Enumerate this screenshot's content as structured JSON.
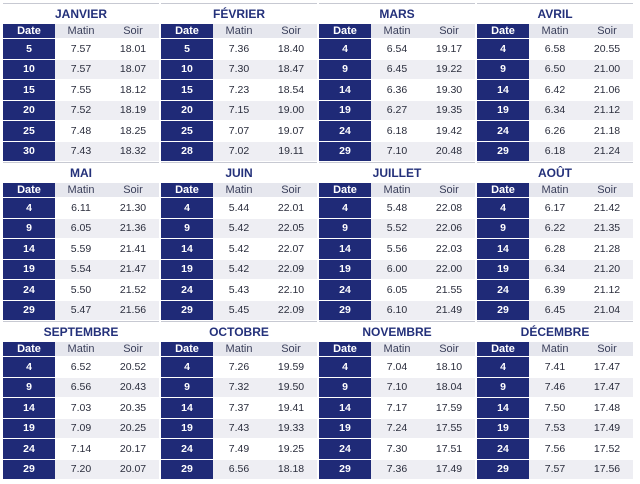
{
  "headers": {
    "date": "Date",
    "morning": "Matin",
    "evening": "Soir"
  },
  "months": [
    {
      "name": "JANVIER",
      "rows": [
        [
          "5",
          "7.57",
          "18.01"
        ],
        [
          "10",
          "7.57",
          "18.07"
        ],
        [
          "15",
          "7.55",
          "18.12"
        ],
        [
          "20",
          "7.52",
          "18.19"
        ],
        [
          "25",
          "7.48",
          "18.25"
        ],
        [
          "30",
          "7.43",
          "18.32"
        ]
      ]
    },
    {
      "name": "FÉVRIER",
      "rows": [
        [
          "5",
          "7.36",
          "18.40"
        ],
        [
          "10",
          "7.30",
          "18.47"
        ],
        [
          "15",
          "7.23",
          "18.54"
        ],
        [
          "20",
          "7.15",
          "19.00"
        ],
        [
          "25",
          "7.07",
          "19.07"
        ],
        [
          "28",
          "7.02",
          "19.11"
        ]
      ]
    },
    {
      "name": "MARS",
      "rows": [
        [
          "4",
          "6.54",
          "19.17"
        ],
        [
          "9",
          "6.45",
          "19.22"
        ],
        [
          "14",
          "6.36",
          "19.30"
        ],
        [
          "19",
          "6.27",
          "19.35"
        ],
        [
          "24",
          "6.18",
          "19.42"
        ],
        [
          "29",
          "7.10",
          "20.48"
        ]
      ]
    },
    {
      "name": "AVRIL",
      "rows": [
        [
          "4",
          "6.58",
          "20.55"
        ],
        [
          "9",
          "6.50",
          "21.00"
        ],
        [
          "14",
          "6.42",
          "21.06"
        ],
        [
          "19",
          "6.34",
          "21.12"
        ],
        [
          "24",
          "6.26",
          "21.18"
        ],
        [
          "29",
          "6.18",
          "21.24"
        ]
      ]
    },
    {
      "name": "MAI",
      "rows": [
        [
          "4",
          "6.11",
          "21.30"
        ],
        [
          "9",
          "6.05",
          "21.36"
        ],
        [
          "14",
          "5.59",
          "21.41"
        ],
        [
          "19",
          "5.54",
          "21.47"
        ],
        [
          "24",
          "5.50",
          "21.52"
        ],
        [
          "29",
          "5.47",
          "21.56"
        ]
      ]
    },
    {
      "name": "JUIN",
      "rows": [
        [
          "4",
          "5.44",
          "22.01"
        ],
        [
          "9",
          "5.42",
          "22.05"
        ],
        [
          "14",
          "5.42",
          "22.07"
        ],
        [
          "19",
          "5.42",
          "22.09"
        ],
        [
          "24",
          "5.43",
          "22.10"
        ],
        [
          "29",
          "5.45",
          "22.09"
        ]
      ]
    },
    {
      "name": "JUILLET",
      "rows": [
        [
          "4",
          "5.48",
          "22.08"
        ],
        [
          "9",
          "5.52",
          "22.06"
        ],
        [
          "14",
          "5.56",
          "22.03"
        ],
        [
          "19",
          "6.00",
          "22.00"
        ],
        [
          "24",
          "6.05",
          "21.55"
        ],
        [
          "29",
          "6.10",
          "21.49"
        ]
      ]
    },
    {
      "name": "AOÛT",
      "rows": [
        [
          "4",
          "6.17",
          "21.42"
        ],
        [
          "9",
          "6.22",
          "21.35"
        ],
        [
          "14",
          "6.28",
          "21.28"
        ],
        [
          "19",
          "6.34",
          "21.20"
        ],
        [
          "24",
          "6.39",
          "21.12"
        ],
        [
          "29",
          "6.45",
          "21.04"
        ]
      ]
    },
    {
      "name": "SEPTEMBRE",
      "rows": [
        [
          "4",
          "6.52",
          "20.52"
        ],
        [
          "9",
          "6.56",
          "20.43"
        ],
        [
          "14",
          "7.03",
          "20.35"
        ],
        [
          "19",
          "7.09",
          "20.25"
        ],
        [
          "24",
          "7.14",
          "20.17"
        ],
        [
          "29",
          "7.20",
          "20.07"
        ]
      ]
    },
    {
      "name": "OCTOBRE",
      "rows": [
        [
          "4",
          "7.26",
          "19.59"
        ],
        [
          "9",
          "7.32",
          "19.50"
        ],
        [
          "14",
          "7.37",
          "19.41"
        ],
        [
          "19",
          "7.43",
          "19.33"
        ],
        [
          "24",
          "7.49",
          "19.25"
        ],
        [
          "29",
          "6.56",
          "18.18"
        ]
      ]
    },
    {
      "name": "NOVEMBRE",
      "rows": [
        [
          "4",
          "7.04",
          "18.10"
        ],
        [
          "9",
          "7.10",
          "18.04"
        ],
        [
          "14",
          "7.17",
          "17.59"
        ],
        [
          "19",
          "7.24",
          "17.55"
        ],
        [
          "24",
          "7.30",
          "17.51"
        ],
        [
          "29",
          "7.36",
          "17.49"
        ]
      ]
    },
    {
      "name": "DÉCEMBRE",
      "rows": [
        [
          "4",
          "7.41",
          "17.47"
        ],
        [
          "9",
          "7.46",
          "17.47"
        ],
        [
          "14",
          "7.50",
          "17.48"
        ],
        [
          "19",
          "7.53",
          "17.49"
        ],
        [
          "24",
          "7.56",
          "17.52"
        ],
        [
          "29",
          "7.57",
          "17.56"
        ]
      ]
    }
  ]
}
